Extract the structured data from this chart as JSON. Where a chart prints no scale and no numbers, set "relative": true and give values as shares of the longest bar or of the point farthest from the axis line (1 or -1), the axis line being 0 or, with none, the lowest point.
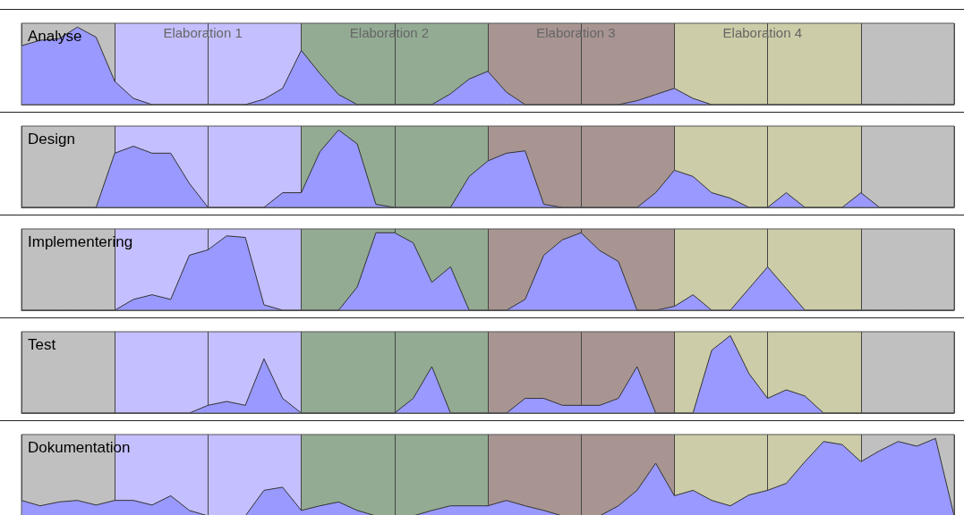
{
  "chart_data": [
    {
      "type": "area",
      "title": "Analyse",
      "relative": true,
      "marker": "none",
      "grid": "x",
      "annotations": [
        "Elaboration 1",
        "Elaboration 2",
        "Elaboration 3",
        "Elaboration 4"
      ],
      "categories": [
        null,
        null,
        null,
        null,
        null,
        null,
        null,
        null,
        null,
        null,
        null,
        null,
        null,
        null,
        null,
        null,
        null,
        null,
        null,
        null,
        null,
        null,
        null,
        null,
        null,
        null,
        null,
        null,
        null,
        null,
        null,
        null,
        null,
        null,
        null,
        null,
        null,
        null,
        null,
        null,
        null,
        null,
        null,
        null,
        null,
        null,
        null,
        null,
        null,
        null,
        null
      ],
      "series": [
        {
          "color": "#9999ff",
          "values": [
            0.76,
            0.83,
            0.85,
            1,
            0.87,
            0.3,
            0.08,
            0,
            0,
            0,
            0,
            0,
            0,
            0.07,
            0.21,
            0.7,
            0.4,
            0.13,
            0,
            0,
            0,
            0,
            0,
            0.14,
            0.33,
            0.43,
            0.16,
            0,
            0,
            0,
            0,
            0,
            0,
            0.05,
            0.13,
            0.21,
            0.08,
            0,
            0,
            0,
            0,
            0,
            0,
            0,
            0,
            0,
            0,
            0,
            0,
            0,
            0
          ]
        }
      ]
    },
    {
      "type": "area",
      "title": "Design",
      "relative": true,
      "marker": "none",
      "grid": "x",
      "categories": [
        null,
        null,
        null,
        null,
        null,
        null,
        null,
        null,
        null,
        null,
        null,
        null,
        null,
        null,
        null,
        null,
        null,
        null,
        null,
        null,
        null,
        null,
        null,
        null,
        null,
        null,
        null,
        null,
        null,
        null,
        null,
        null,
        null,
        null,
        null,
        null,
        null,
        null,
        null,
        null,
        null,
        null,
        null,
        null,
        null,
        null,
        null,
        null,
        null,
        null,
        null
      ],
      "series": [
        {
          "color": "#9999ff",
          "values": [
            0,
            0,
            0,
            0,
            0,
            0.7,
            0.79,
            0.7,
            0.7,
            0.31,
            0,
            0,
            0,
            0,
            0.19,
            0.19,
            0.72,
            1,
            0.82,
            0.04,
            0,
            0,
            0,
            0,
            0.4,
            0.6,
            0.7,
            0.73,
            0.04,
            0,
            0,
            0,
            0,
            0,
            0.19,
            0.48,
            0.4,
            0.19,
            0.12,
            0,
            0,
            0.19,
            0,
            0,
            0,
            0.19,
            0,
            0,
            0,
            0,
            0
          ]
        }
      ]
    },
    {
      "type": "area",
      "title": "Implementering",
      "relative": true,
      "marker": "none",
      "grid": "x",
      "categories": [
        null,
        null,
        null,
        null,
        null,
        null,
        null,
        null,
        null,
        null,
        null,
        null,
        null,
        null,
        null,
        null,
        null,
        null,
        null,
        null,
        null,
        null,
        null,
        null,
        null,
        null,
        null,
        null,
        null,
        null,
        null,
        null,
        null,
        null,
        null,
        null,
        null,
        null,
        null,
        null,
        null,
        null,
        null,
        null,
        null,
        null,
        null,
        null,
        null,
        null,
        null
      ],
      "series": [
        {
          "color": "#9999ff",
          "values": [
            0,
            0,
            0,
            0,
            0,
            0,
            0.14,
            0.2,
            0.14,
            0.71,
            0.78,
            0.96,
            0.94,
            0.07,
            0,
            0,
            0,
            0,
            0.3,
            1,
            1,
            0.87,
            0.36,
            0.56,
            0,
            0,
            0,
            0.14,
            0.71,
            0.91,
            1,
            0.77,
            0.63,
            0,
            0,
            0.05,
            0.2,
            0,
            0,
            0.28,
            0.56,
            0.28,
            0,
            0,
            0,
            0,
            0,
            0,
            0,
            0,
            0
          ]
        }
      ]
    },
    {
      "type": "area",
      "title": "Test",
      "relative": true,
      "marker": "none",
      "grid": "x",
      "categories": [
        null,
        null,
        null,
        null,
        null,
        null,
        null,
        null,
        null,
        null,
        null,
        null,
        null,
        null,
        null,
        null,
        null,
        null,
        null,
        null,
        null,
        null,
        null,
        null,
        null,
        null,
        null,
        null,
        null,
        null,
        null,
        null,
        null,
        null,
        null,
        null,
        null,
        null,
        null,
        null,
        null,
        null,
        null,
        null,
        null,
        null,
        null,
        null,
        null,
        null,
        null
      ],
      "series": [
        {
          "color": "#9999ff",
          "values": [
            0,
            0,
            0,
            0,
            0,
            0,
            0,
            0,
            0,
            0,
            0.1,
            0.15,
            0.1,
            0.7,
            0.19,
            0,
            0,
            0,
            0,
            0,
            0,
            0.19,
            0.6,
            0,
            0,
            0,
            0,
            0.19,
            0.19,
            0.1,
            0.1,
            0.1,
            0.19,
            0.6,
            0,
            0,
            0,
            0.81,
            1,
            0.51,
            0.19,
            0.3,
            0.22,
            0,
            0,
            0,
            0,
            0,
            0,
            0,
            0
          ]
        }
      ]
    },
    {
      "type": "area",
      "title": "Dokumentation",
      "relative": true,
      "marker": "none",
      "grid": "x",
      "categories": [
        null,
        null,
        null,
        null,
        null,
        null,
        null,
        null,
        null,
        null,
        null,
        null,
        null,
        null,
        null,
        null,
        null,
        null,
        null,
        null,
        null,
        null,
        null,
        null,
        null,
        null,
        null,
        null,
        null,
        null,
        null,
        null,
        null,
        null,
        null,
        null,
        null,
        null,
        null,
        null,
        null,
        null,
        null,
        null,
        null,
        null,
        null,
        null,
        null,
        null,
        null
      ],
      "series": [
        {
          "color": "#9999ff",
          "values": [
            0.2,
            0.13,
            0.18,
            0.2,
            0.14,
            0.2,
            0.2,
            0.14,
            0.26,
            0.07,
            0,
            0,
            0,
            0.33,
            0.37,
            0.07,
            0.13,
            0.18,
            0.07,
            0,
            0,
            0,
            0.07,
            0.13,
            0.13,
            0.13,
            0.2,
            0.13,
            0.07,
            0,
            0,
            0,
            0.13,
            0.33,
            0.68,
            0.26,
            0.33,
            0.2,
            0.13,
            0.27,
            0.33,
            0.42,
            0.7,
            0.96,
            0.92,
            0.7,
            0.84,
            0.96,
            0.9,
            1,
            0
          ]
        }
      ]
    }
  ]
}
